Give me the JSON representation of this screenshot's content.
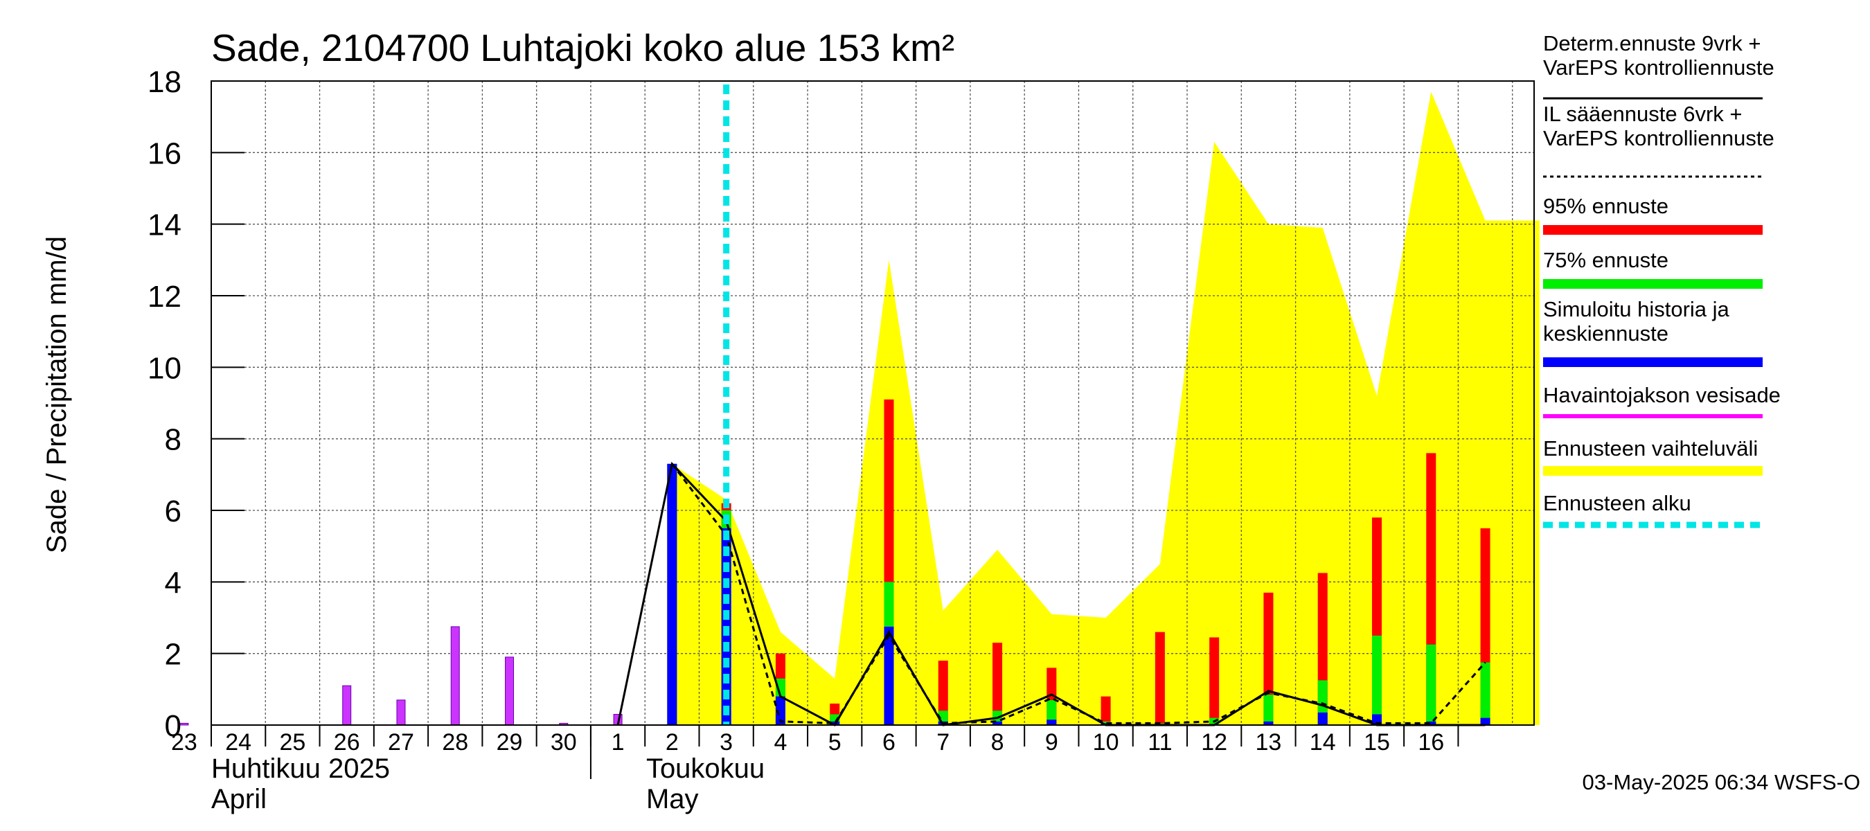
{
  "chart_data": {
    "type": "bar",
    "title": "Sade, 2104700 Luhtajoki koko alue 153 km²",
    "ylabel": "Sade / Precipitation   mm/d",
    "ylim": [
      0,
      18
    ],
    "yticks": [
      0,
      2,
      4,
      6,
      8,
      10,
      12,
      14,
      16,
      18
    ],
    "grid": true,
    "day_labels": [
      "23",
      "24",
      "25",
      "26",
      "27",
      "28",
      "29",
      "30",
      "1",
      "2",
      "3",
      "4",
      "5",
      "6",
      "7",
      "8",
      "9",
      "10",
      "11",
      "12",
      "13",
      "14",
      "15",
      "16"
    ],
    "month_labels": [
      {
        "line1": "Huhtikuu  2025",
        "line2": "April",
        "day_index": 0
      },
      {
        "line1": "Toukokuu",
        "line2": "May",
        "day_index": 9
      }
    ],
    "forecast_start_day_index": 10,
    "observed_precip": {
      "name": "Havaintojakson vesisade",
      "day_index": [
        0,
        3,
        4,
        5,
        6,
        7,
        8
      ],
      "values": [
        0.05,
        1.1,
        0.7,
        2.75,
        1.9,
        0.05,
        0.3
      ]
    },
    "forecast_bars": {
      "day_index": [
        9,
        10,
        11,
        12,
        13,
        14,
        15,
        16,
        17,
        18,
        19,
        20,
        21,
        22,
        23,
        24
      ],
      "p95": [
        7.3,
        6.2,
        2.0,
        0.6,
        9.1,
        1.8,
        2.3,
        1.6,
        0.8,
        2.6,
        2.45,
        3.7,
        4.25,
        5.8,
        7.6,
        5.5
      ],
      "p75": [
        7.3,
        6.0,
        1.3,
        0.3,
        4.0,
        0.4,
        0.4,
        0.7,
        0.1,
        0.05,
        0.2,
        0.85,
        1.25,
        2.5,
        2.25,
        1.75
      ],
      "mean": [
        7.3,
        5.5,
        0.8,
        0.1,
        2.75,
        0.1,
        0.1,
        0.15,
        0.05,
        0.02,
        0.02,
        0.1,
        0.35,
        0.3,
        0.1,
        0.2
      ]
    },
    "control_forecast": {
      "name": "Determ.ennuste 9vrk + VarEPS kontrolliennuste",
      "day_index": [
        8,
        9,
        10,
        11,
        12,
        13,
        14,
        15,
        16,
        17,
        18,
        19,
        20,
        21,
        22,
        23,
        24
      ],
      "values": [
        0.0,
        7.3,
        5.7,
        0.8,
        0.0,
        2.6,
        0.0,
        0.2,
        0.85,
        0.0,
        0.0,
        0.0,
        0.95,
        0.55,
        0.0,
        0.0,
        0.0
      ]
    },
    "il_forecast": {
      "name": "IL sääennuste 6vrk + VarEPS kontrolliennuste",
      "day_index": [
        9,
        10,
        11,
        12,
        13,
        14,
        15,
        16,
        17,
        18,
        19,
        20,
        21,
        22,
        23,
        24
      ],
      "values": [
        7.3,
        5.3,
        0.1,
        0.05,
        2.5,
        0.05,
        0.1,
        0.75,
        0.05,
        0.05,
        0.1,
        0.9,
        0.6,
        0.05,
        0.05,
        1.75
      ]
    },
    "forecast_range": {
      "name": "Ennusteen vaihteluväli",
      "day_index": [
        9,
        10,
        11,
        12,
        13,
        14,
        15,
        16,
        17,
        18,
        19,
        20,
        21,
        22,
        23,
        24,
        25
      ],
      "upper": [
        7.3,
        6.3,
        2.6,
        1.3,
        13.0,
        3.2,
        4.9,
        3.1,
        3.0,
        4.5,
        16.3,
        14.0,
        13.9,
        9.2,
        17.7,
        14.1,
        14.1
      ]
    },
    "legend": [
      {
        "label": "Determ.ennuste 9vrk +\nVarEPS kontrolliennuste",
        "color": "#000000",
        "style": "solid"
      },
      {
        "label": "IL sääennuste 6vrk  +\n  VarEPS kontrolliennuste",
        "color": "#000000",
        "style": "dashed"
      },
      {
        "label": "95% ennuste",
        "color": "#ff0000",
        "style": "thick"
      },
      {
        "label": "75% ennuste",
        "color": "#00ee00",
        "style": "thick"
      },
      {
        "label": "Simuloitu historia ja\nkeskiennuste",
        "color": "#0000ff",
        "style": "thick"
      },
      {
        "label": "Havaintojakson vesisade",
        "color": "#ff00ff",
        "style": "medium"
      },
      {
        "label": "Ennusteen vaihteluväli",
        "color": "#ffff00",
        "style": "thick"
      },
      {
        "label": "Ennusteen alku",
        "color": "#00e5e5",
        "style": "dashed-thick"
      }
    ],
    "colors": {
      "observed": "#cc33ff",
      "p95": "#ff0000",
      "p75": "#00ee00",
      "mean": "#0000ff",
      "range": "#ffff00",
      "forecast_start": "#00e5e5",
      "grid": "#000000"
    }
  },
  "footer": "03-May-2025 06:34 WSFS-O"
}
